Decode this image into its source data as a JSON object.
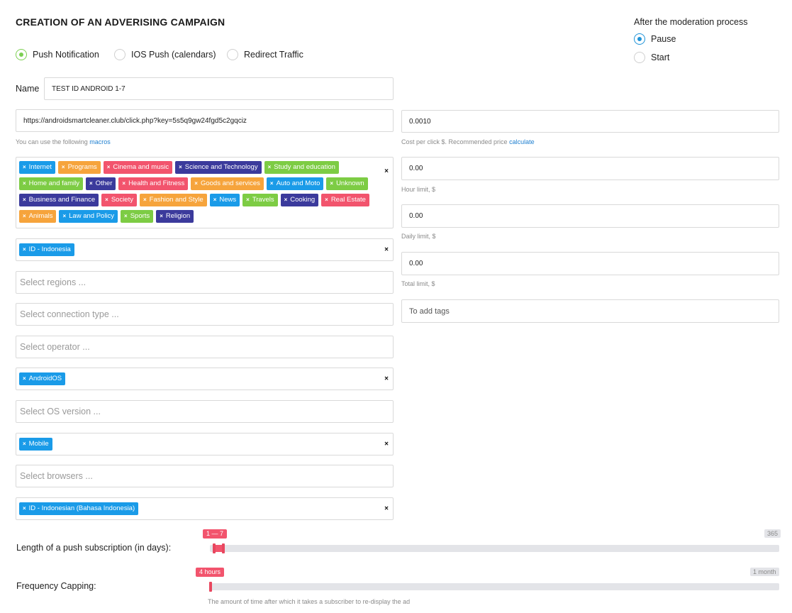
{
  "page_title": "CREATION OF AN ADVERISING CAMPAIGN",
  "moderation": {
    "heading": "After the moderation process",
    "options": [
      {
        "label": "Pause",
        "selected": true
      },
      {
        "label": "Start",
        "selected": false
      }
    ]
  },
  "campaign_types": [
    {
      "label": "Push Notification",
      "selected": true
    },
    {
      "label": "IOS Push (calendars)",
      "selected": false
    },
    {
      "label": "Redirect Traffic",
      "selected": false
    }
  ],
  "name": {
    "label": "Name",
    "value": "TEST ID ANDROID 1-7"
  },
  "url": {
    "value": "https://androidsmartcleaner.club/click.php?key=5s5q9gw24fgd5c2gqciz",
    "hint_prefix": "You can use the following",
    "hint_link": "macros"
  },
  "categories": [
    {
      "label": "Internet",
      "color": "#1a9be8"
    },
    {
      "label": "Programs",
      "color": "#f6a43c"
    },
    {
      "label": "Cinema and music",
      "color": "#f2546d"
    },
    {
      "label": "Science and Technology",
      "color": "#3b3a9c"
    },
    {
      "label": "Study and education",
      "color": "#7dcc44"
    },
    {
      "label": "Home and family",
      "color": "#7dcc44"
    },
    {
      "label": "Other",
      "color": "#3b3a9c"
    },
    {
      "label": "Health and Fitness",
      "color": "#f2546d"
    },
    {
      "label": "Goods and services",
      "color": "#f6a43c"
    },
    {
      "label": "Auto and Moto",
      "color": "#1a9be8"
    },
    {
      "label": "Unknown",
      "color": "#7dcc44"
    },
    {
      "label": "Business and Finance",
      "color": "#3b3a9c"
    },
    {
      "label": "Society",
      "color": "#f2546d"
    },
    {
      "label": "Fashion and Style",
      "color": "#f6a43c"
    },
    {
      "label": "News",
      "color": "#1a9be8"
    },
    {
      "label": "Travels",
      "color": "#7dcc44"
    },
    {
      "label": "Cooking",
      "color": "#3b3a9c"
    },
    {
      "label": "Real Estate",
      "color": "#f2546d"
    },
    {
      "label": "Animals",
      "color": "#f6a43c"
    },
    {
      "label": "Law and Policy",
      "color": "#1a9be8"
    },
    {
      "label": "Sports",
      "color": "#7dcc44"
    },
    {
      "label": "Religion",
      "color": "#3b3a9c"
    }
  ],
  "country_tag": "ID - Indonesia",
  "placeholders": {
    "regions": "Select regions ...",
    "connection": "Select connection type ...",
    "operator": "Select operator ...",
    "os_version": "Select OS version ...",
    "browsers": "Select browsers ..."
  },
  "os_tag": "AndroidOS",
  "device_tag": "Mobile",
  "language_tag": "ID - Indonesian (Bahasa Indonesia)",
  "cost": {
    "value": "0.0010",
    "hint_prefix": "Cost per click $. Recommended price",
    "hint_link": "calculate"
  },
  "hour_limit": {
    "value": "0.00",
    "hint": "Hour limit, $"
  },
  "daily_limit": {
    "value": "0.00",
    "hint": "Daily limit, $"
  },
  "total_limit": {
    "value": "0.00",
    "hint": "Total limit, $"
  },
  "tags_placeholder": "To add tags",
  "subscription_length": {
    "label": "Length of a push subscription (in days):",
    "bubble": "1 — 7",
    "max_label": "365",
    "range_from": 1,
    "range_to": 7,
    "max": 365
  },
  "frequency": {
    "label": "Frequency Capping:",
    "bubble": "4 hours",
    "max_label": "1 month",
    "hint": "The amount of time after which it takes a subscriber to re-display the ad"
  },
  "icons": {
    "tag_remove": "×",
    "clear": "×"
  }
}
